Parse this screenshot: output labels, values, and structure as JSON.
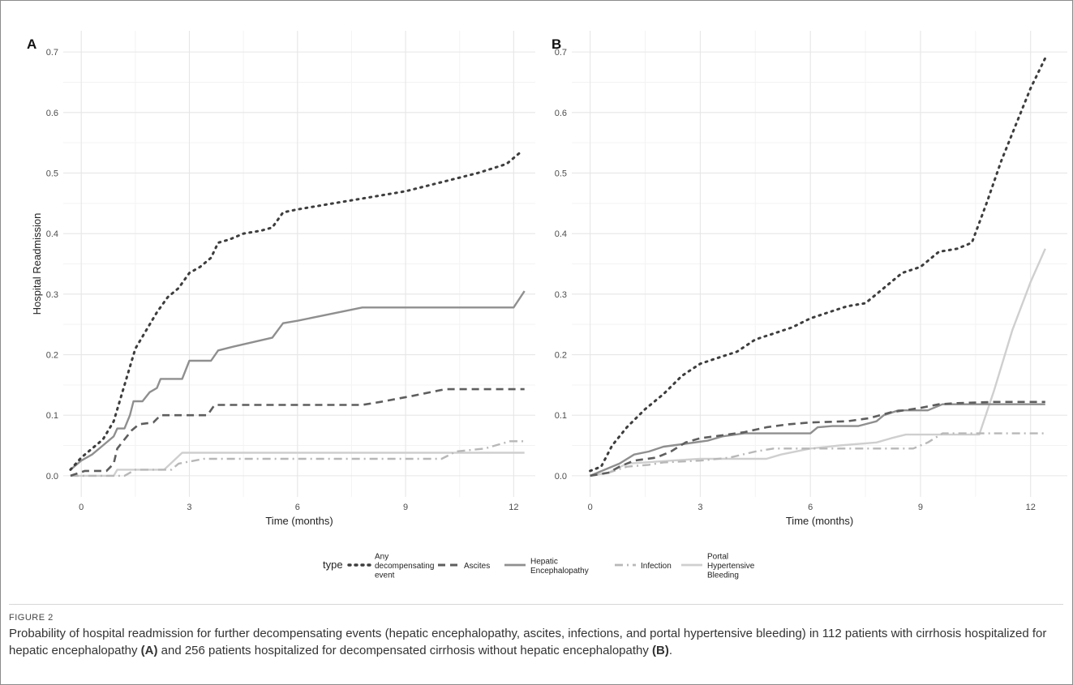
{
  "figure": {
    "label": "FIGURE 2",
    "caption_parts": [
      {
        "text": "Probability of hospital readmission for further decompensating events (hepatic encephalopathy, ascites, infections, and portal hypertensive bleeding) in 112 patients with cirrhosis hospitalized for hepatic encephalopathy ",
        "bold": false
      },
      {
        "text": "(A)",
        "bold": true
      },
      {
        "text": " and 256 patients hospitalized for decompensated cirrhosis without hepatic encephalopathy ",
        "bold": false
      },
      {
        "text": "(B)",
        "bold": true
      },
      {
        "text": ".",
        "bold": false
      }
    ]
  },
  "legend": {
    "title": "type",
    "entries": [
      {
        "label": [
          "Any",
          "decompensating",
          "event"
        ],
        "series": "Any decompensating event"
      },
      {
        "label": [
          "Ascites"
        ],
        "series": "Ascites"
      },
      {
        "label": [
          "Hepatic",
          "Encephalopathy"
        ],
        "series": "Hepatic Encephalopathy"
      },
      {
        "label": [
          "Infection"
        ],
        "series": "Infection"
      },
      {
        "label": [
          "Portal",
          "Hypertensive",
          "Bleeding"
        ],
        "series": "Portal Hypertensive Bleeding"
      }
    ]
  },
  "styles": {
    "Any decompensating event": {
      "color": "#3d3d3d",
      "dash": "dot"
    },
    "Ascites": {
      "color": "#5e5e5e",
      "dash": "dash"
    },
    "Hepatic Encephalopathy": {
      "color": "#8f8f8f",
      "dash": "solid"
    },
    "Infection": {
      "color": "#b8b8b8",
      "dash": "dotdash"
    },
    "Portal Hypertensive Bleeding": {
      "color": "#cfcfcf",
      "dash": "solid"
    }
  },
  "chart_data": [
    {
      "panel": "A",
      "type": "line",
      "xlabel": "Time (months)",
      "ylabel": "Hospital Readmission",
      "xlim": [
        -0.5,
        12.6
      ],
      "ylim": [
        -0.035,
        0.735
      ],
      "xticks": [
        0,
        3,
        6,
        9,
        12
      ],
      "yticks": [
        0.0,
        0.1,
        0.2,
        0.3,
        0.4,
        0.5,
        0.6,
        0.7
      ],
      "grid": true,
      "series": [
        {
          "name": "Any decompensating event",
          "points": [
            [
              -0.3,
              0.01
            ],
            [
              0,
              0.03
            ],
            [
              0.3,
              0.045
            ],
            [
              0.6,
              0.06
            ],
            [
              0.9,
              0.09
            ],
            [
              1.1,
              0.13
            ],
            [
              1.3,
              0.17
            ],
            [
              1.5,
              0.21
            ],
            [
              1.8,
              0.24
            ],
            [
              2.1,
              0.27
            ],
            [
              2.4,
              0.295
            ],
            [
              2.7,
              0.31
            ],
            [
              3.0,
              0.335
            ],
            [
              3.3,
              0.345
            ],
            [
              3.6,
              0.36
            ],
            [
              3.8,
              0.385
            ],
            [
              4.1,
              0.39
            ],
            [
              4.5,
              0.4
            ],
            [
              5.0,
              0.405
            ],
            [
              5.3,
              0.41
            ],
            [
              5.6,
              0.435
            ],
            [
              6.0,
              0.44
            ],
            [
              7.0,
              0.45
            ],
            [
              8.0,
              0.46
            ],
            [
              9.0,
              0.47
            ],
            [
              10.0,
              0.485
            ],
            [
              11.0,
              0.5
            ],
            [
              11.8,
              0.515
            ],
            [
              12.2,
              0.535
            ]
          ]
        },
        {
          "name": "Ascites",
          "points": [
            [
              -0.3,
              0.0
            ],
            [
              0.1,
              0.008
            ],
            [
              0.7,
              0.008
            ],
            [
              0.9,
              0.02
            ],
            [
              1.0,
              0.045
            ],
            [
              1.2,
              0.06
            ],
            [
              1.4,
              0.075
            ],
            [
              1.6,
              0.085
            ],
            [
              2.0,
              0.088
            ],
            [
              2.2,
              0.1
            ],
            [
              3.5,
              0.1
            ],
            [
              3.7,
              0.117
            ],
            [
              7.8,
              0.117
            ],
            [
              8.3,
              0.122
            ],
            [
              9.2,
              0.132
            ],
            [
              10.1,
              0.143
            ],
            [
              12.3,
              0.143
            ]
          ]
        },
        {
          "name": "Hepatic Encephalopathy",
          "points": [
            [
              -0.3,
              0.01
            ],
            [
              0,
              0.025
            ],
            [
              0.3,
              0.035
            ],
            [
              0.6,
              0.05
            ],
            [
              0.9,
              0.065
            ],
            [
              1.0,
              0.078
            ],
            [
              1.2,
              0.078
            ],
            [
              1.35,
              0.1
            ],
            [
              1.45,
              0.123
            ],
            [
              1.7,
              0.123
            ],
            [
              1.9,
              0.138
            ],
            [
              2.1,
              0.145
            ],
            [
              2.2,
              0.16
            ],
            [
              2.8,
              0.16
            ],
            [
              3.0,
              0.19
            ],
            [
              3.6,
              0.19
            ],
            [
              3.8,
              0.207
            ],
            [
              4.2,
              0.213
            ],
            [
              5.3,
              0.228
            ],
            [
              5.6,
              0.252
            ],
            [
              6.0,
              0.256
            ],
            [
              7.8,
              0.278
            ],
            [
              12.0,
              0.278
            ],
            [
              12.3,
              0.305
            ]
          ]
        },
        {
          "name": "Infection",
          "points": [
            [
              -0.3,
              0.0
            ],
            [
              1.2,
              0.0
            ],
            [
              1.5,
              0.01
            ],
            [
              2.5,
              0.01
            ],
            [
              2.7,
              0.02
            ],
            [
              3.4,
              0.028
            ],
            [
              10.0,
              0.028
            ],
            [
              10.4,
              0.04
            ],
            [
              11.2,
              0.045
            ],
            [
              11.9,
              0.057
            ],
            [
              12.3,
              0.057
            ]
          ]
        },
        {
          "name": "Portal Hypertensive Bleeding",
          "points": [
            [
              -0.3,
              0.0
            ],
            [
              0.9,
              0.0
            ],
            [
              1.0,
              0.01
            ],
            [
              2.3,
              0.01
            ],
            [
              2.8,
              0.038
            ],
            [
              12.3,
              0.038
            ]
          ]
        }
      ]
    },
    {
      "panel": "B",
      "type": "line",
      "xlabel": "Time (months)",
      "ylabel": "",
      "xlim": [
        -0.5,
        13.0
      ],
      "ylim": [
        -0.035,
        0.735
      ],
      "xticks": [
        0,
        3,
        6,
        9,
        12
      ],
      "yticks": [
        0.0,
        0.1,
        0.2,
        0.3,
        0.4,
        0.5,
        0.6,
        0.7
      ],
      "grid": true,
      "series": [
        {
          "name": "Any decompensating event",
          "points": [
            [
              0,
              0.008
            ],
            [
              0.3,
              0.015
            ],
            [
              0.6,
              0.05
            ],
            [
              1.0,
              0.08
            ],
            [
              1.5,
              0.11
            ],
            [
              2.0,
              0.135
            ],
            [
              2.5,
              0.165
            ],
            [
              3.0,
              0.185
            ],
            [
              3.5,
              0.195
            ],
            [
              4.0,
              0.205
            ],
            [
              4.5,
              0.225
            ],
            [
              5.0,
              0.235
            ],
            [
              5.5,
              0.245
            ],
            [
              6.0,
              0.26
            ],
            [
              6.5,
              0.27
            ],
            [
              7.0,
              0.28
            ],
            [
              7.5,
              0.285
            ],
            [
              8.0,
              0.31
            ],
            [
              8.5,
              0.335
            ],
            [
              9.0,
              0.345
            ],
            [
              9.5,
              0.37
            ],
            [
              10.0,
              0.375
            ],
            [
              10.4,
              0.385
            ],
            [
              10.8,
              0.45
            ],
            [
              11.2,
              0.52
            ],
            [
              11.6,
              0.58
            ],
            [
              12.0,
              0.64
            ],
            [
              12.4,
              0.69
            ]
          ]
        },
        {
          "name": "Ascites",
          "points": [
            [
              0,
              0.0
            ],
            [
              0.5,
              0.005
            ],
            [
              0.8,
              0.015
            ],
            [
              1.2,
              0.025
            ],
            [
              1.8,
              0.03
            ],
            [
              2.2,
              0.04
            ],
            [
              2.6,
              0.055
            ],
            [
              3.0,
              0.062
            ],
            [
              3.5,
              0.066
            ],
            [
              4.2,
              0.072
            ],
            [
              4.8,
              0.08
            ],
            [
              5.4,
              0.085
            ],
            [
              6.0,
              0.088
            ],
            [
              7.0,
              0.09
            ],
            [
              7.6,
              0.095
            ],
            [
              8.2,
              0.105
            ],
            [
              9.0,
              0.112
            ],
            [
              9.5,
              0.118
            ],
            [
              10.0,
              0.12
            ],
            [
              11.0,
              0.122
            ],
            [
              12.4,
              0.122
            ]
          ]
        },
        {
          "name": "Hepatic Encephalopathy",
          "points": [
            [
              0,
              0.0
            ],
            [
              0.4,
              0.01
            ],
            [
              0.8,
              0.02
            ],
            [
              1.2,
              0.035
            ],
            [
              1.6,
              0.04
            ],
            [
              2.0,
              0.048
            ],
            [
              2.5,
              0.052
            ],
            [
              3.2,
              0.058
            ],
            [
              3.6,
              0.065
            ],
            [
              4.2,
              0.07
            ],
            [
              6.0,
              0.07
            ],
            [
              6.2,
              0.08
            ],
            [
              6.6,
              0.082
            ],
            [
              7.3,
              0.082
            ],
            [
              7.8,
              0.09
            ],
            [
              8.0,
              0.1
            ],
            [
              8.4,
              0.108
            ],
            [
              9.2,
              0.108
            ],
            [
              9.6,
              0.118
            ],
            [
              12.4,
              0.118
            ]
          ]
        },
        {
          "name": "Infection",
          "points": [
            [
              0,
              0.0
            ],
            [
              0.5,
              0.005
            ],
            [
              1.0,
              0.015
            ],
            [
              1.6,
              0.018
            ],
            [
              2.0,
              0.022
            ],
            [
              3.0,
              0.025
            ],
            [
              3.8,
              0.03
            ],
            [
              4.5,
              0.04
            ],
            [
              5.0,
              0.045
            ],
            [
              6.0,
              0.045
            ],
            [
              6.5,
              0.045
            ],
            [
              8.8,
              0.045
            ],
            [
              9.2,
              0.055
            ],
            [
              9.6,
              0.07
            ],
            [
              12.4,
              0.07
            ]
          ]
        },
        {
          "name": "Portal Hypertensive Bleeding",
          "points": [
            [
              0,
              0.0
            ],
            [
              0.5,
              0.005
            ],
            [
              1.0,
              0.02
            ],
            [
              1.5,
              0.022
            ],
            [
              2.2,
              0.025
            ],
            [
              3.0,
              0.028
            ],
            [
              4.8,
              0.028
            ],
            [
              5.2,
              0.035
            ],
            [
              6.0,
              0.045
            ],
            [
              6.8,
              0.05
            ],
            [
              7.8,
              0.055
            ],
            [
              8.2,
              0.062
            ],
            [
              8.6,
              0.068
            ],
            [
              10.6,
              0.068
            ],
            [
              11.0,
              0.14
            ],
            [
              11.5,
              0.24
            ],
            [
              12.0,
              0.32
            ],
            [
              12.4,
              0.375
            ]
          ]
        }
      ]
    }
  ]
}
